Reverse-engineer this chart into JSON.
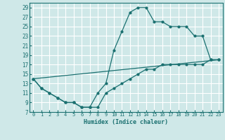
{
  "xlabel": "Humidex (Indice chaleur)",
  "xlim": [
    -0.5,
    23.5
  ],
  "ylim": [
    7,
    30
  ],
  "xticks": [
    0,
    1,
    2,
    3,
    4,
    5,
    6,
    7,
    8,
    9,
    10,
    11,
    12,
    13,
    14,
    15,
    16,
    17,
    18,
    19,
    20,
    21,
    22,
    23
  ],
  "yticks": [
    7,
    9,
    11,
    13,
    15,
    17,
    19,
    21,
    23,
    25,
    27,
    29
  ],
  "bg_color": "#cfe8e8",
  "line_color": "#1a7070",
  "grid_color": "#ffffff",
  "line1_x": [
    0,
    1,
    2,
    3,
    4,
    5,
    6,
    7,
    8,
    9,
    10,
    11,
    12,
    13,
    14,
    15,
    16,
    17,
    18,
    19,
    20,
    21,
    22,
    23
  ],
  "line1_y": [
    14,
    12,
    11,
    10,
    9,
    9,
    8,
    8,
    8,
    11,
    12,
    13,
    14,
    15,
    16,
    16,
    17,
    17,
    17,
    17,
    17,
    17,
    18,
    18
  ],
  "line2_x": [
    0,
    1,
    2,
    3,
    4,
    5,
    6,
    7,
    8,
    9,
    10,
    11,
    12,
    13,
    14,
    15,
    16,
    17,
    18,
    19,
    20,
    21,
    22,
    23
  ],
  "line2_y": [
    14,
    12,
    11,
    10,
    9,
    9,
    8,
    8,
    11,
    13,
    20,
    24,
    28,
    29,
    29,
    26,
    26,
    25,
    25,
    25,
    23,
    23,
    18,
    18
  ],
  "line3_x": [
    0,
    23
  ],
  "line3_y": [
    14,
    18
  ]
}
